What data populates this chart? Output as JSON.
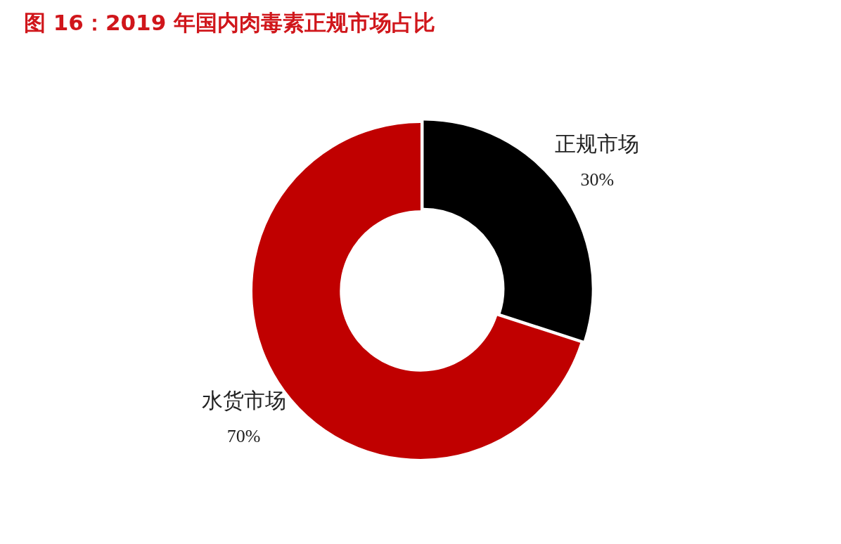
{
  "chart_data": {
    "type": "donut",
    "title": "图 16：2019 年国内肉毒素正规市场占比",
    "categories": [
      "正规市场",
      "水货市场"
    ],
    "values": [
      30,
      70
    ],
    "value_labels": [
      "30%",
      "70%"
    ],
    "colors": [
      "#000000",
      "#c00000"
    ],
    "legend": false
  }
}
